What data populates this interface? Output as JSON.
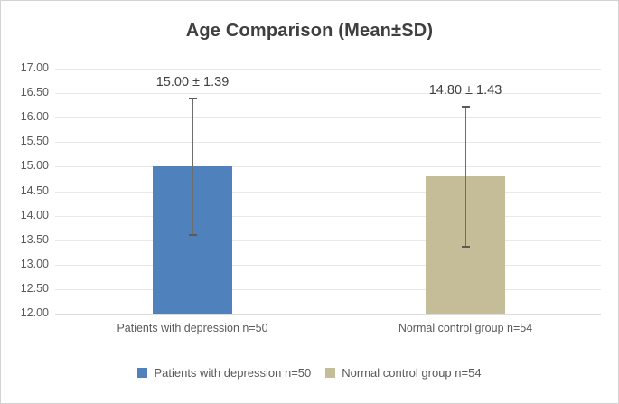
{
  "chart_data": {
    "type": "bar",
    "title": "Age Comparison (Mean±SD)",
    "categories": [
      "Patients with depression n=50",
      "Normal control group n=54"
    ],
    "values": [
      15.0,
      14.8
    ],
    "error_bars": [
      1.39,
      1.43
    ],
    "data_labels": [
      "15.00 ± 1.39",
      "14.80 ± 1.43"
    ],
    "bar_colors": [
      "#4F81BD",
      "#C4BD97"
    ],
    "legend": {
      "position": "bottom",
      "entries": [
        "Patients with depression n=50",
        "Normal control group n=54"
      ]
    },
    "xlabel": "",
    "ylabel": "",
    "ylim": [
      12.0,
      17.0
    ],
    "y_step": 0.5,
    "y_tick_labels": [
      "17.00",
      "16.50",
      "16.00",
      "15.50",
      "15.00",
      "14.50",
      "14.00",
      "13.50",
      "13.00",
      "12.50",
      "12.00"
    ],
    "grid": true,
    "colors": {
      "title_text": "#3F3F3F",
      "axis_text": "#595959",
      "data_label_text": "#404040",
      "gridline": "#E8E8E8",
      "error_bar": "#6E6E6E",
      "frame_border": "#D3D3D3"
    }
  }
}
